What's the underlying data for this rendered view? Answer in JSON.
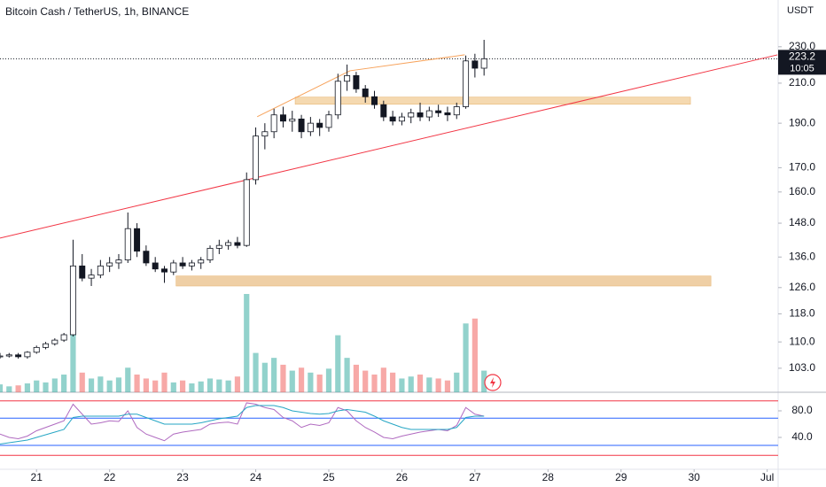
{
  "chart_data": {
    "type": "candlestick",
    "title": "Bitcoin Cash / TetherUS, 1h, BINANCE",
    "currency": "USDT",
    "log_scale": true,
    "up_color": "#26a69a",
    "down_color": "#ef5350",
    "x": [
      20.5,
      20.625,
      20.75,
      20.875,
      21.0,
      21.125,
      21.25,
      21.375,
      21.5,
      21.625,
      21.75,
      21.875,
      22.0,
      22.125,
      22.25,
      22.375,
      22.5,
      22.625,
      22.75,
      22.875,
      23.0,
      23.125,
      23.25,
      23.375,
      23.5,
      23.625,
      23.75,
      23.875,
      24.0,
      24.125,
      24.25,
      24.375,
      24.5,
      24.625,
      24.75,
      24.875,
      25.0,
      25.125,
      25.25,
      25.375,
      25.5,
      25.625,
      25.75,
      25.875,
      26.0,
      26.125,
      26.25,
      26.375,
      26.5,
      26.625,
      26.75,
      26.875,
      27.0,
      27.125
    ],
    "open": [
      106,
      106.2,
      106.5,
      106,
      107.2,
      108.5,
      109.5,
      110.5,
      112,
      133,
      129,
      130,
      133,
      134,
      135,
      146,
      138,
      134,
      132,
      131,
      134,
      133,
      134,
      135,
      139,
      140,
      141,
      140,
      165,
      184,
      186,
      194,
      191,
      192,
      186,
      190,
      188,
      194,
      211,
      214,
      207,
      203,
      199,
      193,
      191,
      193,
      195,
      193,
      196,
      195,
      194,
      198,
      222,
      218
    ],
    "high": [
      107,
      107,
      107,
      107.5,
      109,
      110,
      111,
      112.5,
      142,
      137,
      132,
      135,
      136,
      137,
      152,
      148,
      140,
      136,
      133,
      135,
      136,
      135,
      136,
      140,
      142,
      142,
      143,
      168,
      188,
      190,
      197,
      198,
      196,
      194,
      193,
      192,
      196,
      215,
      220,
      216,
      209,
      206,
      201,
      196,
      195,
      197,
      200,
      198,
      199,
      198,
      200,
      225,
      226,
      234
    ],
    "low": [
      105.5,
      105.8,
      105.5,
      105.5,
      106.8,
      108,
      109,
      110,
      111.5,
      128,
      126.5,
      129,
      131,
      132,
      134,
      136,
      133,
      131,
      127.5,
      130,
      132,
      131.5,
      132,
      134,
      137,
      138.5,
      139,
      139.5,
      163,
      178,
      183,
      188,
      186,
      183,
      184,
      184,
      186,
      192,
      206,
      205,
      200,
      197,
      191,
      189,
      189,
      190,
      191,
      191,
      193,
      191,
      192,
      197,
      213,
      214
    ],
    "close": [
      106.2,
      106.5,
      106,
      107.2,
      108.5,
      109.5,
      110.5,
      112,
      133,
      129,
      130,
      133,
      134,
      135,
      146,
      138,
      134,
      132,
      131,
      134,
      133,
      134,
      135,
      139,
      140,
      141,
      140,
      165,
      184,
      186,
      194,
      191,
      192,
      186,
      190,
      188,
      194,
      211,
      214,
      207,
      203,
      199,
      193,
      191,
      193,
      195,
      193,
      196,
      195,
      194,
      198,
      222,
      218,
      223.2
    ],
    "volume": [
      8,
      6,
      7,
      9,
      12,
      10,
      14,
      18,
      61,
      20,
      14,
      16,
      12,
      15,
      25,
      18,
      14,
      12,
      20,
      10,
      12,
      9,
      11,
      14,
      13,
      12,
      16,
      100,
      40,
      30,
      35,
      28,
      22,
      25,
      20,
      18,
      24,
      58,
      35,
      28,
      22,
      18,
      25,
      20,
      14,
      16,
      18,
      15,
      14,
      12,
      20,
      70,
      75,
      22
    ],
    "volume_ylim": [
      0,
      100
    ],
    "ylim": [
      97,
      258.5
    ],
    "yticks": [
      {
        "value": 230,
        "label": "230.0"
      },
      {
        "value": 210,
        "label": "210.0"
      },
      {
        "value": 190,
        "label": "190.0"
      },
      {
        "value": 170,
        "label": "170.0"
      },
      {
        "value": 160,
        "label": "160.0"
      },
      {
        "value": 148,
        "label": "148.0"
      },
      {
        "value": 136,
        "label": "136.0"
      },
      {
        "value": 126,
        "label": "126.0"
      },
      {
        "value": 118,
        "label": "118.0"
      },
      {
        "value": 110,
        "label": "110.0"
      },
      {
        "value": 103,
        "label": "103.0"
      }
    ],
    "xlim": [
      20.5,
      31.15
    ],
    "xticks": [
      21,
      22,
      23,
      24,
      25,
      26,
      27,
      28,
      29,
      30,
      {
        "value": 31,
        "label": "Jul"
      }
    ],
    "last_price": 223.2,
    "countdown": "10:05",
    "trendlines": [
      {
        "color": "#f23645",
        "points": [
          [
            20.5,
            142.6
          ],
          [
            31.14,
            225.4
          ]
        ]
      },
      {
        "color": "#f7a35c",
        "points": [
          [
            24.02,
            193.1
          ],
          [
            25.29,
            216.6
          ],
          [
            26.86,
            225.4
          ]
        ]
      }
    ],
    "boxes": [
      {
        "color": "#f5d9b0",
        "x": [
          24.54,
          29.95
        ],
        "y": [
          199.2,
          202.8
        ]
      },
      {
        "color": "#efcfa5",
        "x": [
          22.91,
          30.23
        ],
        "y": [
          126.5,
          129.7
        ]
      }
    ],
    "indicator": {
      "ylim": [
        -8,
        105.3
      ],
      "yticks": [
        {
          "value": 80,
          "label": "80.0"
        },
        {
          "value": 40,
          "label": "40.0"
        }
      ],
      "levels": [
        {
          "value": 95,
          "color": "#f23645"
        },
        {
          "value": 69,
          "color": "#2962ff"
        },
        {
          "value": 28,
          "color": "#2962ff"
        },
        {
          "value": 13,
          "color": "#f23645"
        }
      ],
      "series": [
        {
          "color": "#b06ac0",
          "values": [
            45,
            40,
            38,
            42,
            50,
            55,
            60,
            65,
            90,
            75,
            60,
            62,
            65,
            64,
            80,
            55,
            45,
            40,
            35,
            45,
            48,
            50,
            52,
            60,
            62,
            63,
            60,
            92,
            90,
            85,
            82,
            70,
            65,
            55,
            60,
            58,
            62,
            85,
            80,
            65,
            55,
            48,
            40,
            38,
            42,
            45,
            48,
            50,
            52,
            50,
            58,
            85,
            75,
            72
          ]
        },
        {
          "color": "#26a6c4",
          "values": [
            30,
            32,
            34,
            36,
            40,
            44,
            48,
            52,
            70,
            72,
            72,
            72,
            72,
            72,
            75,
            75,
            70,
            65,
            60,
            60,
            60,
            60,
            62,
            65,
            68,
            70,
            72,
            85,
            88,
            88,
            88,
            85,
            80,
            78,
            76,
            75,
            76,
            80,
            82,
            80,
            78,
            72,
            65,
            60,
            55,
            52,
            52,
            52,
            52,
            52,
            55,
            70,
            72,
            72
          ]
        }
      ]
    }
  }
}
